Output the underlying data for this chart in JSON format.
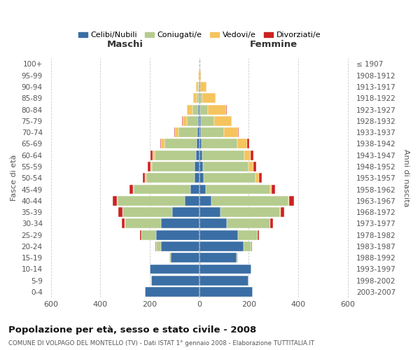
{
  "age_groups": [
    "0-4",
    "5-9",
    "10-14",
    "15-19",
    "20-24",
    "25-29",
    "30-34",
    "35-39",
    "40-44",
    "45-49",
    "50-54",
    "55-59",
    "60-64",
    "65-69",
    "70-74",
    "75-79",
    "80-84",
    "85-89",
    "90-94",
    "95-99",
    "100+"
  ],
  "birth_years": [
    "2003-2007",
    "1998-2002",
    "1993-1997",
    "1988-1992",
    "1983-1987",
    "1978-1982",
    "1973-1977",
    "1968-1972",
    "1963-1967",
    "1958-1962",
    "1953-1957",
    "1948-1952",
    "1943-1947",
    "1938-1942",
    "1933-1937",
    "1928-1932",
    "1923-1927",
    "1918-1922",
    "1913-1917",
    "1908-1912",
    "≤ 1907"
  ],
  "colors": {
    "celibi": "#3A6EA5",
    "coniugati": "#B5CC8E",
    "vedovi": "#F5C45E",
    "divorziati": "#CC2222"
  },
  "maschi": {
    "celibi": [
      220,
      195,
      200,
      115,
      155,
      175,
      155,
      110,
      60,
      35,
      20,
      18,
      15,
      12,
      8,
      5,
      4,
      3,
      2,
      1,
      0
    ],
    "coniugati": [
      0,
      0,
      0,
      5,
      20,
      60,
      145,
      200,
      270,
      230,
      195,
      175,
      165,
      130,
      75,
      45,
      25,
      8,
      4,
      1,
      0
    ],
    "vedovi": [
      0,
      0,
      0,
      0,
      0,
      0,
      2,
      2,
      2,
      3,
      4,
      5,
      8,
      12,
      15,
      18,
      20,
      15,
      8,
      2,
      0
    ],
    "divorziati": [
      0,
      0,
      0,
      0,
      2,
      4,
      12,
      16,
      18,
      14,
      10,
      12,
      10,
      5,
      4,
      2,
      1,
      0,
      0,
      0,
      0
    ]
  },
  "femmine": {
    "celibi": [
      215,
      200,
      210,
      150,
      180,
      155,
      110,
      85,
      50,
      25,
      18,
      15,
      12,
      8,
      5,
      5,
      4,
      3,
      2,
      1,
      0
    ],
    "coniugati": [
      0,
      0,
      0,
      5,
      30,
      80,
      175,
      240,
      310,
      260,
      210,
      185,
      170,
      145,
      95,
      55,
      30,
      8,
      2,
      0,
      0
    ],
    "vedovi": [
      0,
      0,
      0,
      0,
      0,
      1,
      2,
      3,
      4,
      8,
      12,
      18,
      25,
      40,
      55,
      70,
      75,
      55,
      25,
      5,
      1
    ],
    "divorziati": [
      0,
      0,
      0,
      0,
      2,
      4,
      10,
      15,
      18,
      14,
      12,
      12,
      10,
      8,
      5,
      2,
      2,
      0,
      0,
      0,
      0
    ]
  },
  "title": "Popolazione per età, sesso e stato civile - 2008",
  "subtitle": "COMUNE DI VOLPAGO DEL MONTELLO (TV) - Dati ISTAT 1° gennaio 2008 - Elaborazione TUTTITALIA.IT",
  "xlabel_left": "Maschi",
  "xlabel_right": "Femmine",
  "ylabel_left": "Fasce di età",
  "ylabel_right": "Anni di nascita",
  "legend_labels": [
    "Celibi/Nubili",
    "Coniugati/e",
    "Vedovi/e",
    "Divorziati/e"
  ],
  "xlim": 620,
  "background_color": "#FFFFFF",
  "grid_color": "#CCCCCC"
}
